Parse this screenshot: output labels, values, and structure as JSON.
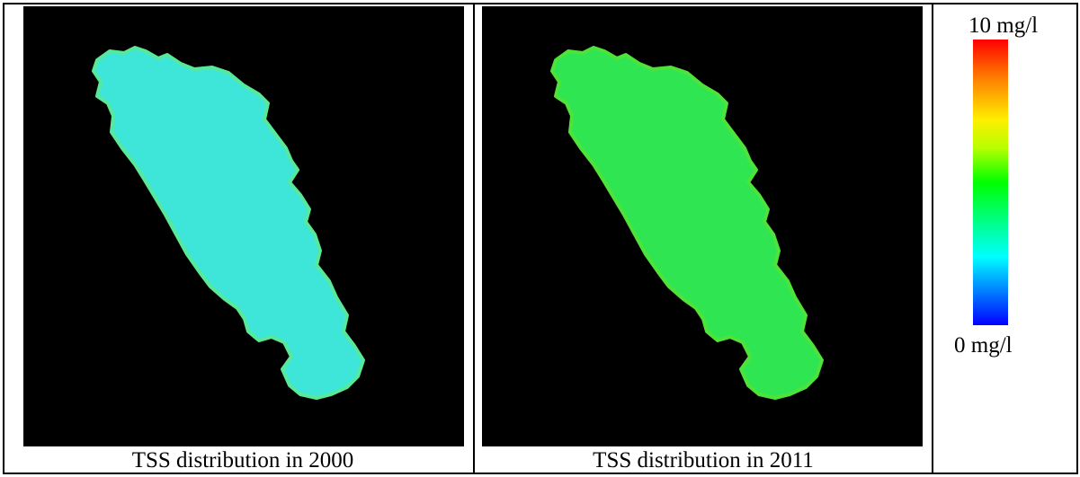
{
  "panels": [
    {
      "caption": "TSS distribution in 2000",
      "fill_color": "#3de6d9",
      "edge_color": "#58e89a"
    },
    {
      "caption": "TSS distribution in 2011",
      "fill_color": "#2fe652",
      "edge_color": "#4ee33a"
    }
  ],
  "legend": {
    "max_label": "10 mg/l",
    "min_label": "0 mg/l",
    "colors": [
      "#ff0000",
      "#ff7a00",
      "#ffee00",
      "#b7ff00",
      "#00ff00",
      "#00ffb0",
      "#00ffff",
      "#0080ff",
      "#0000ff"
    ]
  }
}
